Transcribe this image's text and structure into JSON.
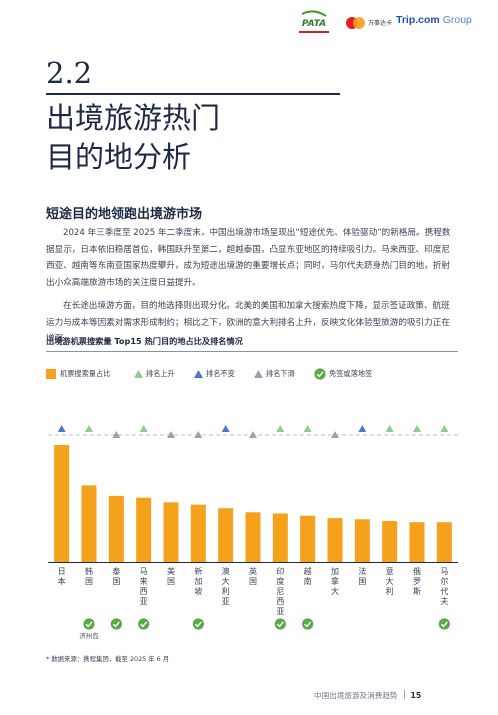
{
  "header": {
    "pata_logo": "PATA",
    "mastercard_text": "万事达卡",
    "trip_brand": "Trip.com",
    "trip_group": "Group"
  },
  "section": {
    "number": "2.2",
    "title_line1": "出境旅游热门",
    "title_line2": "目的地分析"
  },
  "subheading": "短途目的地领跑出境游市场",
  "paragraphs": [
    "2024 年三季度至 2025 年二季度末，中国出境游市场呈现出“短途优先、体验驱动”的新格局。携程数据显示，日本依旧稳居首位，韩国跃升至第二，超越泰国，凸显东亚地区的持续吸引力。马来西亚、印度尼西亚、越南等东南亚国家热度攀升，成为短途出境游的重要增长点；同时，马尔代夫跻身热门目的地，折射出小众高端旅游市场的关注度日益提升。",
    "在长途出境游方面，目的地选择则出现分化。北美的美国和加拿大搜索热度下降，显示签证政策、航班运力与成本等因素对需求形成制约；相比之下，欧洲的意大利排名上升，反映文化体验型旅游的吸引力正在增强。"
  ],
  "chart_title": "出境游机票搜索量 Top15 热门目的地占比及排名情况",
  "legend": {
    "bar": "机票搜索量占比",
    "up": "排名上升",
    "same": "排名不变",
    "down": "排名下滑",
    "visa": "免签或落地签"
  },
  "colors": {
    "bar": "#f5a11c",
    "up": "#8fcc8f",
    "same": "#4a79c9",
    "down": "#9aa1ab",
    "visa": "#5aaa4a",
    "dashed_line": "#a8c7e6",
    "axis": "#1e2946"
  },
  "chart_data": {
    "type": "bar",
    "categories": [
      "日本",
      "韩国",
      "泰国",
      "马来西亚",
      "美国",
      "新加坡",
      "澳大利亚",
      "英国",
      "印度尼西亚",
      "越南",
      "加拿大",
      "法国",
      "意大利",
      "俄罗斯",
      "马尔代夫"
    ],
    "values": [
      100,
      65.5,
      56.5,
      55,
      51,
      49,
      46,
      42.5,
      41.5,
      39.5,
      37.5,
      36.5,
      35,
      34,
      34
    ],
    "value_scale": "relative share, 日本 = 100 (no axis printed)",
    "rank_change": [
      "same",
      "up",
      "down",
      "up",
      "down",
      "down",
      "same",
      "down",
      "up",
      "up",
      "down",
      "same",
      "up",
      "up",
      "up"
    ],
    "visa_free": [
      false,
      true,
      true,
      true,
      false,
      true,
      false,
      false,
      true,
      true,
      false,
      false,
      false,
      false,
      true
    ],
    "visa_note": {
      "category": "韩国",
      "text": "济州岛"
    }
  },
  "footnote": "* 数据来源：携程集团，截至 2025 年 6 月",
  "footer": {
    "report_name": "中国出境旅游及消费趋势",
    "page_number": "15"
  }
}
